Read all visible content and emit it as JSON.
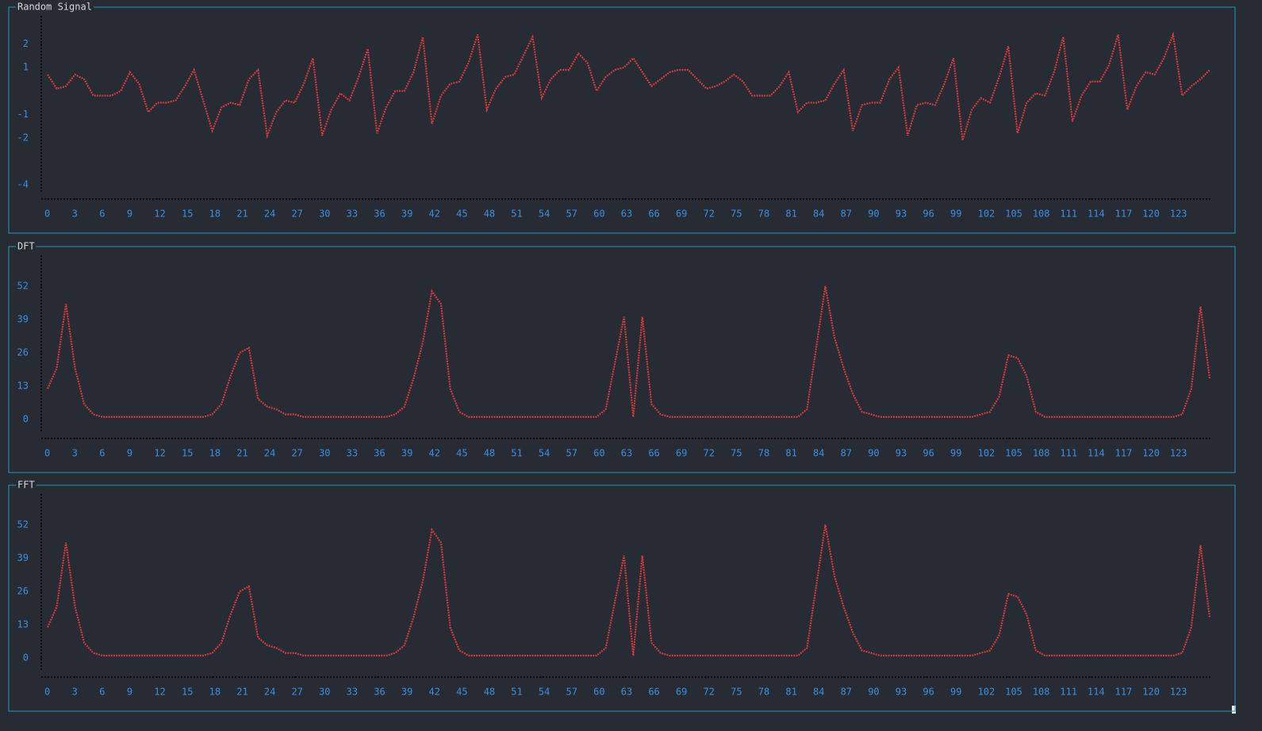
{
  "chart_data": [
    {
      "type": "line",
      "title": "Random Signal",
      "color": "#d13b3b",
      "x": [
        0,
        1,
        2,
        3,
        4,
        5,
        6,
        7,
        8,
        9,
        10,
        11,
        12,
        13,
        14,
        15,
        16,
        17,
        18,
        19,
        20,
        21,
        22,
        23,
        24,
        25,
        26,
        27,
        28,
        29,
        30,
        31,
        32,
        33,
        34,
        35,
        36,
        37,
        38,
        39,
        40,
        41,
        42,
        43,
        44,
        45,
        46,
        47,
        48,
        49,
        50,
        51,
        52,
        53,
        54,
        55,
        56,
        57,
        58,
        59,
        60,
        61,
        62,
        63,
        64,
        65,
        66,
        67,
        68,
        69,
        70,
        71,
        72,
        73,
        74,
        75,
        76,
        77,
        78,
        79,
        80,
        81,
        82,
        83,
        84,
        85,
        86,
        87,
        88,
        89,
        90,
        91,
        92,
        93,
        94,
        95,
        96,
        97,
        98,
        99,
        100,
        101,
        102,
        103,
        104,
        105,
        106,
        107,
        108,
        109,
        110,
        111,
        112,
        113,
        114,
        115,
        116,
        117,
        118,
        119,
        120,
        121,
        122,
        123,
        124,
        125,
        126,
        127
      ],
      "values": [
        0.7,
        0.1,
        0.2,
        0.7,
        0.5,
        -0.2,
        -0.2,
        -0.2,
        0.0,
        0.8,
        0.3,
        -0.9,
        -0.5,
        -0.5,
        -0.4,
        0.2,
        0.9,
        -0.4,
        -1.7,
        -0.7,
        -0.5,
        -0.6,
        0.5,
        0.9,
        -1.9,
        -0.9,
        -0.4,
        -0.5,
        0.3,
        1.4,
        -1.9,
        -0.8,
        -0.1,
        -0.4,
        0.6,
        1.8,
        -1.8,
        -0.7,
        0.0,
        0.0,
        0.8,
        2.3,
        -1.4,
        -0.2,
        0.3,
        0.4,
        1.2,
        2.4,
        -0.8,
        0.1,
        0.6,
        0.7,
        1.5,
        2.3,
        -0.3,
        0.5,
        0.9,
        0.9,
        1.6,
        1.2,
        0.0,
        0.6,
        0.9,
        1.0,
        1.4,
        0.8,
        0.2,
        0.5,
        0.8,
        0.9,
        0.9,
        0.5,
        0.1,
        0.2,
        0.4,
        0.7,
        0.4,
        -0.2,
        -0.2,
        -0.2,
        0.2,
        0.8,
        -0.9,
        -0.5,
        -0.5,
        -0.4,
        0.3,
        0.9,
        -1.7,
        -0.6,
        -0.5,
        -0.5,
        0.5,
        1.0,
        -1.9,
        -0.6,
        -0.5,
        -0.6,
        0.3,
        1.4,
        -2.1,
        -0.8,
        -0.3,
        -0.5,
        0.6,
        1.9,
        -1.8,
        -0.5,
        -0.1,
        -0.2,
        0.8,
        2.3,
        -1.3,
        -0.2,
        0.4,
        0.4,
        1.1,
        2.4,
        -0.8,
        0.2,
        0.8,
        0.7,
        1.4,
        2.4,
        -0.2,
        0.2,
        0.5,
        0.9
      ],
      "xlim": [
        0,
        127
      ],
      "xticks": [
        0,
        3,
        6,
        9,
        12,
        15,
        18,
        21,
        24,
        27,
        30,
        33,
        36,
        39,
        42,
        45,
        48,
        51,
        54,
        57,
        60,
        63,
        66,
        69,
        72,
        75,
        78,
        81,
        84,
        87,
        90,
        93,
        96,
        99,
        102,
        105,
        108,
        111,
        114,
        117,
        120,
        123
      ],
      "ylim": [
        -4.3,
        3.2
      ],
      "yticks": [
        2,
        1,
        -1,
        -2,
        -4
      ]
    },
    {
      "type": "line",
      "title": "DFT",
      "color": "#d13b3b",
      "x": [
        0,
        1,
        2,
        3,
        4,
        5,
        6,
        7,
        8,
        9,
        10,
        11,
        12,
        13,
        14,
        15,
        16,
        17,
        18,
        19,
        20,
        21,
        22,
        23,
        24,
        25,
        26,
        27,
        28,
        29,
        30,
        31,
        32,
        33,
        34,
        35,
        36,
        37,
        38,
        39,
        40,
        41,
        42,
        43,
        44,
        45,
        46,
        47,
        48,
        49,
        50,
        51,
        52,
        53,
        54,
        55,
        56,
        57,
        58,
        59,
        60,
        61,
        62,
        63,
        64,
        65,
        66,
        67,
        68,
        69,
        70,
        71,
        72,
        73,
        74,
        75,
        76,
        77,
        78,
        79,
        80,
        81,
        82,
        83,
        84,
        85,
        86,
        87,
        88,
        89,
        90,
        91,
        92,
        93,
        94,
        95,
        96,
        97,
        98,
        99,
        100,
        101,
        102,
        103,
        104,
        105,
        106,
        107,
        108,
        109,
        110,
        111,
        112,
        113,
        114,
        115,
        116,
        117,
        118,
        119,
        120,
        121,
        122,
        123,
        124,
        125,
        126,
        127
      ],
      "values": [
        12,
        20,
        45,
        20,
        6,
        2,
        1,
        1,
        1,
        1,
        1,
        1,
        1,
        1,
        1,
        1,
        1,
        1,
        2,
        6,
        17,
        26,
        28,
        8,
        5,
        4,
        2,
        2,
        1,
        1,
        1,
        1,
        1,
        1,
        1,
        1,
        1,
        1,
        2,
        5,
        16,
        30,
        50,
        45,
        12,
        3,
        1,
        1,
        1,
        1,
        1,
        1,
        1,
        1,
        1,
        1,
        1,
        1,
        1,
        1,
        1,
        4,
        22,
        40,
        1,
        40,
        6,
        2,
        1,
        1,
        1,
        1,
        1,
        1,
        1,
        1,
        1,
        1,
        1,
        1,
        1,
        1,
        1,
        4,
        28,
        52,
        32,
        20,
        10,
        3,
        2,
        1,
        1,
        1,
        1,
        1,
        1,
        1,
        1,
        1,
        1,
        1,
        2,
        3,
        9,
        25,
        24,
        17,
        3,
        1,
        1,
        1,
        1,
        1,
        1,
        1,
        1,
        1,
        1,
        1,
        1,
        1,
        1,
        1,
        2,
        12,
        44,
        16
      ],
      "xlim": [
        0,
        127
      ],
      "xticks": [
        0,
        3,
        6,
        9,
        12,
        15,
        18,
        21,
        24,
        27,
        30,
        33,
        36,
        39,
        42,
        45,
        48,
        51,
        54,
        57,
        60,
        63,
        66,
        69,
        72,
        75,
        78,
        81,
        84,
        87,
        90,
        93,
        96,
        99,
        102,
        105,
        108,
        111,
        114,
        117,
        120,
        123
      ],
      "ylim": [
        -4.6,
        64
      ],
      "yticks": [
        52,
        39,
        26,
        13,
        0
      ]
    },
    {
      "type": "line",
      "title": "FFT",
      "color": "#d13b3b",
      "x": [
        0,
        1,
        2,
        3,
        4,
        5,
        6,
        7,
        8,
        9,
        10,
        11,
        12,
        13,
        14,
        15,
        16,
        17,
        18,
        19,
        20,
        21,
        22,
        23,
        24,
        25,
        26,
        27,
        28,
        29,
        30,
        31,
        32,
        33,
        34,
        35,
        36,
        37,
        38,
        39,
        40,
        41,
        42,
        43,
        44,
        45,
        46,
        47,
        48,
        49,
        50,
        51,
        52,
        53,
        54,
        55,
        56,
        57,
        58,
        59,
        60,
        61,
        62,
        63,
        64,
        65,
        66,
        67,
        68,
        69,
        70,
        71,
        72,
        73,
        74,
        75,
        76,
        77,
        78,
        79,
        80,
        81,
        82,
        83,
        84,
        85,
        86,
        87,
        88,
        89,
        90,
        91,
        92,
        93,
        94,
        95,
        96,
        97,
        98,
        99,
        100,
        101,
        102,
        103,
        104,
        105,
        106,
        107,
        108,
        109,
        110,
        111,
        112,
        113,
        114,
        115,
        116,
        117,
        118,
        119,
        120,
        121,
        122,
        123,
        124,
        125,
        126,
        127
      ],
      "values": [
        12,
        20,
        45,
        20,
        6,
        2,
        1,
        1,
        1,
        1,
        1,
        1,
        1,
        1,
        1,
        1,
        1,
        1,
        2,
        6,
        17,
        26,
        28,
        8,
        5,
        4,
        2,
        2,
        1,
        1,
        1,
        1,
        1,
        1,
        1,
        1,
        1,
        1,
        2,
        5,
        16,
        30,
        50,
        45,
        12,
        3,
        1,
        1,
        1,
        1,
        1,
        1,
        1,
        1,
        1,
        1,
        1,
        1,
        1,
        1,
        1,
        4,
        22,
        40,
        1,
        40,
        6,
        2,
        1,
        1,
        1,
        1,
        1,
        1,
        1,
        1,
        1,
        1,
        1,
        1,
        1,
        1,
        1,
        4,
        28,
        52,
        32,
        20,
        10,
        3,
        2,
        1,
        1,
        1,
        1,
        1,
        1,
        1,
        1,
        1,
        1,
        1,
        2,
        3,
        9,
        25,
        24,
        17,
        3,
        1,
        1,
        1,
        1,
        1,
        1,
        1,
        1,
        1,
        1,
        1,
        1,
        1,
        1,
        1,
        2,
        12,
        44,
        16
      ],
      "xlim": [
        0,
        127
      ],
      "xticks": [
        0,
        3,
        6,
        9,
        12,
        15,
        18,
        21,
        24,
        27,
        30,
        33,
        36,
        39,
        42,
        45,
        48,
        51,
        54,
        57,
        60,
        63,
        66,
        69,
        72,
        75,
        78,
        81,
        84,
        87,
        90,
        93,
        96,
        99,
        102,
        105,
        108,
        111,
        114,
        117,
        120,
        123
      ],
      "ylim": [
        -4.6,
        64
      ],
      "yticks": [
        52,
        39,
        26,
        13,
        0
      ]
    }
  ]
}
